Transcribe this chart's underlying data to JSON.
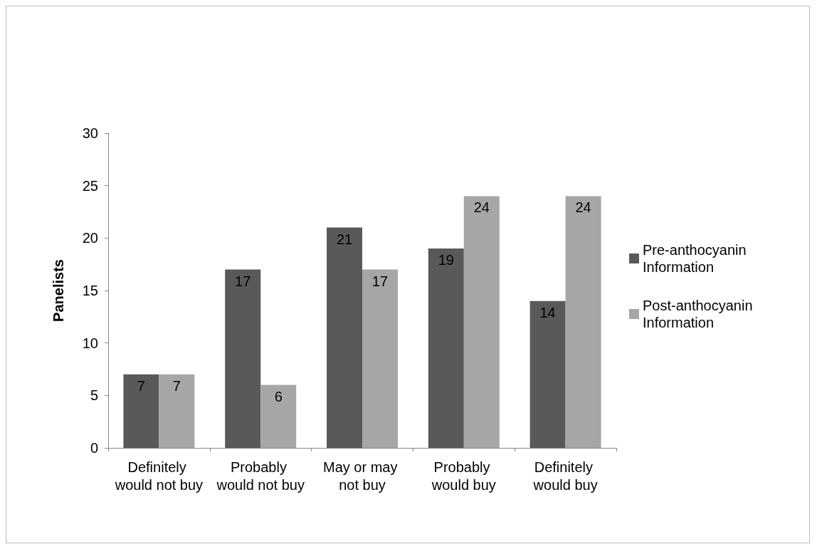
{
  "chart_data": {
    "type": "bar",
    "ylabel": "Panelists",
    "categories": [
      "Definitely would not buy",
      "Probably would not buy",
      "May or may not buy",
      "Probably would buy",
      "Definitely would buy"
    ],
    "series": [
      {
        "name": "Pre-anthocyanin Information",
        "color": "#595959",
        "values": [
          7,
          17,
          21,
          19,
          14
        ]
      },
      {
        "name": "Post-anthocyanin Information",
        "color": "#a6a6a6",
        "values": [
          7,
          6,
          17,
          24,
          24
        ]
      }
    ],
    "ylim": [
      0,
      30
    ],
    "yticks": [
      0,
      5,
      10,
      15,
      20,
      25,
      30
    ],
    "grid": false,
    "legend": "right",
    "data_labels": true
  }
}
